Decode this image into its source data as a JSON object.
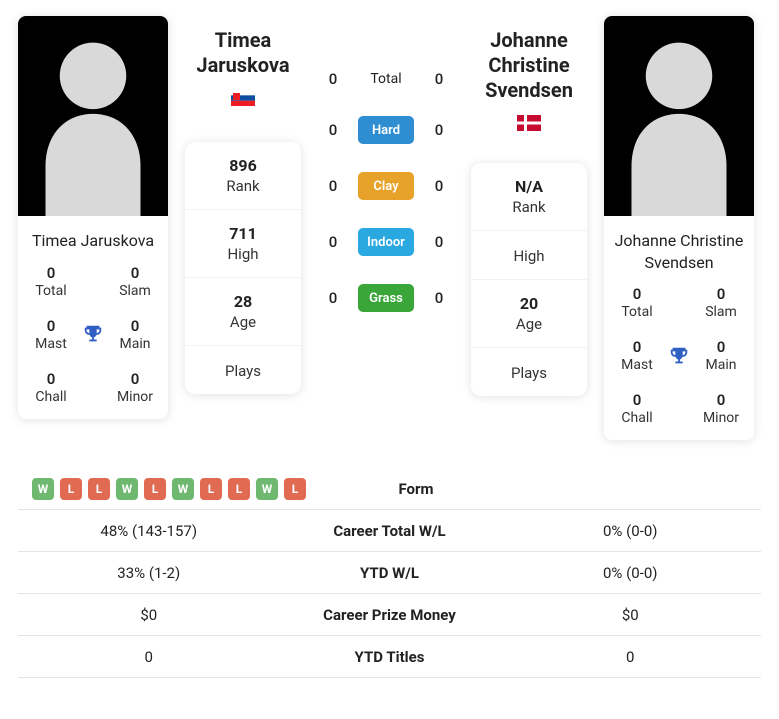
{
  "player1": {
    "name": "Timea Jaruskova",
    "short_name": "Timea Jaruskova",
    "flag": "sk",
    "stats": {
      "total": "0",
      "slam": "0",
      "mast": "0",
      "main": "0",
      "chall": "0",
      "minor": "0"
    },
    "stats_labels": {
      "total": "Total",
      "slam": "Slam",
      "mast": "Mast",
      "main": "Main",
      "chall": "Chall",
      "minor": "Minor"
    },
    "rank": "896",
    "high": "711",
    "age": "28",
    "plays": ""
  },
  "player2": {
    "name": "Johanne Christine Svendsen",
    "short_name": "Johanne Christine Svendsen",
    "flag": "dk",
    "stats": {
      "total": "0",
      "slam": "0",
      "mast": "0",
      "main": "0",
      "chall": "0",
      "minor": "0"
    },
    "stats_labels": {
      "total": "Total",
      "slam": "Slam",
      "mast": "Mast",
      "main": "Main",
      "chall": "Chall",
      "minor": "Minor"
    },
    "rank": "N/A",
    "high": "",
    "age": "20",
    "plays": ""
  },
  "meta_labels": {
    "rank": "Rank",
    "high": "High",
    "age": "Age",
    "plays": "Plays"
  },
  "h2h": {
    "rows": [
      {
        "p1": "0",
        "label": "Total",
        "p2": "0",
        "color": ""
      },
      {
        "p1": "0",
        "label": "Hard",
        "p2": "0",
        "color": "#2f8ed1"
      },
      {
        "p1": "0",
        "label": "Clay",
        "p2": "0",
        "color": "#e7a22a"
      },
      {
        "p1": "0",
        "label": "Indoor",
        "p2": "0",
        "color": "#2aa8e0"
      },
      {
        "p1": "0",
        "label": "Grass",
        "p2": "0",
        "color": "#3aa63a"
      }
    ]
  },
  "bottom": {
    "form_label": "Form",
    "form1": [
      "W",
      "L",
      "L",
      "W",
      "L",
      "W",
      "L",
      "L",
      "W",
      "L"
    ],
    "rows": [
      {
        "p1": "48% (143-157)",
        "label": "Career Total W/L",
        "p2": "0% (0-0)"
      },
      {
        "p1": "33% (1-2)",
        "label": "YTD W/L",
        "p2": "0% (0-0)"
      },
      {
        "p1": "$0",
        "label": "Career Prize Money",
        "p2": "$0"
      },
      {
        "p1": "0",
        "label": "YTD Titles",
        "p2": "0"
      }
    ]
  },
  "colors": {
    "trophy": "#2f5fc3"
  }
}
